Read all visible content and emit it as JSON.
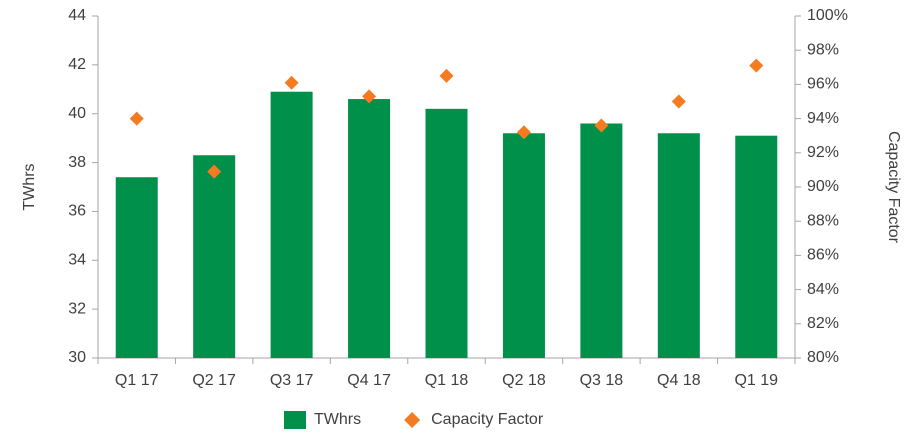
{
  "chart_data": {
    "type": "bar_line",
    "categories": [
      "Q1 17",
      "Q2 17",
      "Q3 17",
      "Q4 17",
      "Q1 18",
      "Q2 18",
      "Q3 18",
      "Q4 18",
      "Q1 19"
    ],
    "series": [
      {
        "name": "TWhrs",
        "type": "bar",
        "color": "#00904a",
        "values": [
          37.4,
          38.3,
          40.9,
          40.6,
          40.2,
          39.2,
          39.6,
          39.2,
          39.1
        ]
      },
      {
        "name": "Capacity Factor",
        "type": "scatter",
        "axis": "y2",
        "color": "#f47b20",
        "values": [
          94.0,
          90.9,
          96.1,
          95.3,
          96.5,
          93.2,
          93.6,
          95.0,
          97.1
        ]
      }
    ],
    "ylabel": "TWhrs",
    "y2label": "Capacity Factor",
    "ylim": [
      30,
      44
    ],
    "yticks": [
      30,
      32,
      34,
      36,
      38,
      40,
      42,
      44
    ],
    "y2lim": [
      80,
      100
    ],
    "y2ticks": [
      {
        "value": 80,
        "label": "80%"
      },
      {
        "value": 82,
        "label": "82%"
      },
      {
        "value": 84,
        "label": "84%"
      },
      {
        "value": 86,
        "label": "86%"
      },
      {
        "value": 88,
        "label": "88%"
      },
      {
        "value": 90,
        "label": "90%"
      },
      {
        "value": 92,
        "label": "92%"
      },
      {
        "value": 94,
        "label": "94%"
      },
      {
        "value": 96,
        "label": "96%"
      },
      {
        "value": 98,
        "label": "98%"
      },
      {
        "value": 100,
        "label": "100%"
      }
    ],
    "legend": "bottom",
    "grid": false
  }
}
